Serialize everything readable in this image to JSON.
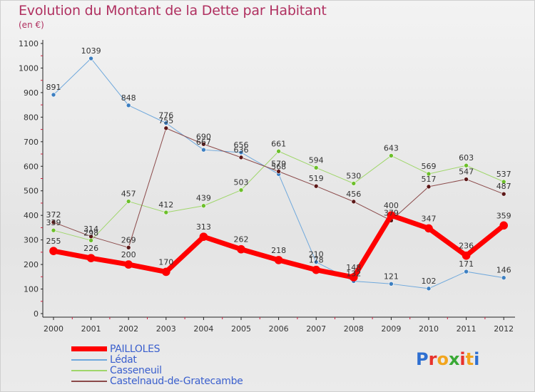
{
  "title": "Evolution du Montant de la Dette par Habitant",
  "subtitle": "(en €)",
  "logo_text": "Proxiti",
  "colors": {
    "title": "#b03060",
    "legend_text": "#3a5fcd",
    "logo_letters": [
      "#2e6fd1",
      "#e8322b",
      "#f2a51e",
      "#39a935",
      "#e8322b",
      "#f2a51e",
      "#2e6fd1"
    ]
  },
  "chart_data": {
    "type": "line",
    "title": "Evolution du Montant de la Dette par Habitant",
    "subtitle": "(en €)",
    "xlabel": "",
    "ylabel": "",
    "x": [
      "2000",
      "2001",
      "2002",
      "2003",
      "2004",
      "2005",
      "2006",
      "2007",
      "2008",
      "2009",
      "2010",
      "2011",
      "2012"
    ],
    "yticks": [
      "0",
      "100",
      "200",
      "300",
      "400",
      "500",
      "600",
      "700",
      "800",
      "900",
      "1000",
      "1100"
    ],
    "ylim": [
      0,
      1100
    ],
    "grid": false,
    "legend_position": "bottom-left",
    "series": [
      {
        "name": "Lédat",
        "color": "#6fa8dc",
        "marker": "#3d7fc1",
        "width": 1,
        "values": [
          891,
          1039,
          848,
          776,
          667,
          656,
          568,
          210,
          132,
          121,
          102,
          171,
          146
        ],
        "labels": [
          "891",
          "1039",
          "848",
          "776",
          "667",
          "656",
          "568",
          "210",
          "132",
          "121",
          "102",
          "171",
          "146"
        ]
      },
      {
        "name": "Casseneuil",
        "color": "#9fd66a",
        "marker": "#6cbf2a",
        "width": 1,
        "values": [
          339,
          298,
          457,
          412,
          439,
          503,
          661,
          594,
          530,
          643,
          569,
          603,
          537
        ],
        "labels": [
          "339",
          "298",
          "457",
          "412",
          "439",
          "503",
          "661",
          "594",
          "530",
          "643",
          "569",
          "603",
          "537"
        ]
      },
      {
        "name": "Castelnaud-de-Gratecambe",
        "color": "#8b4a4a",
        "marker": "#5c1818",
        "width": 1,
        "values": [
          372,
          314,
          269,
          755,
          690,
          636,
          579,
          519,
          456,
          379,
          517,
          547,
          487
        ],
        "labels": [
          "372",
          "314",
          "269",
          "755",
          "690",
          "636",
          "579",
          "519",
          "456",
          "379",
          "517",
          "547",
          "487"
        ]
      },
      {
        "name": "PAILLOLES",
        "color": "#ff0000",
        "marker": "#ff0000",
        "width": 7,
        "values": [
          255,
          226,
          200,
          170,
          313,
          262,
          218,
          178,
          148,
          400,
          347,
          236,
          359
        ],
        "labels": [
          "255",
          "226",
          "200",
          "170",
          "313",
          "262",
          "218",
          "178",
          "148",
          "400",
          "347",
          "236",
          "359"
        ]
      }
    ],
    "legend_order": [
      "PAILLOLES",
      "Lédat",
      "Casseneuil",
      "Castelnaud-de-Gratecambe"
    ]
  }
}
